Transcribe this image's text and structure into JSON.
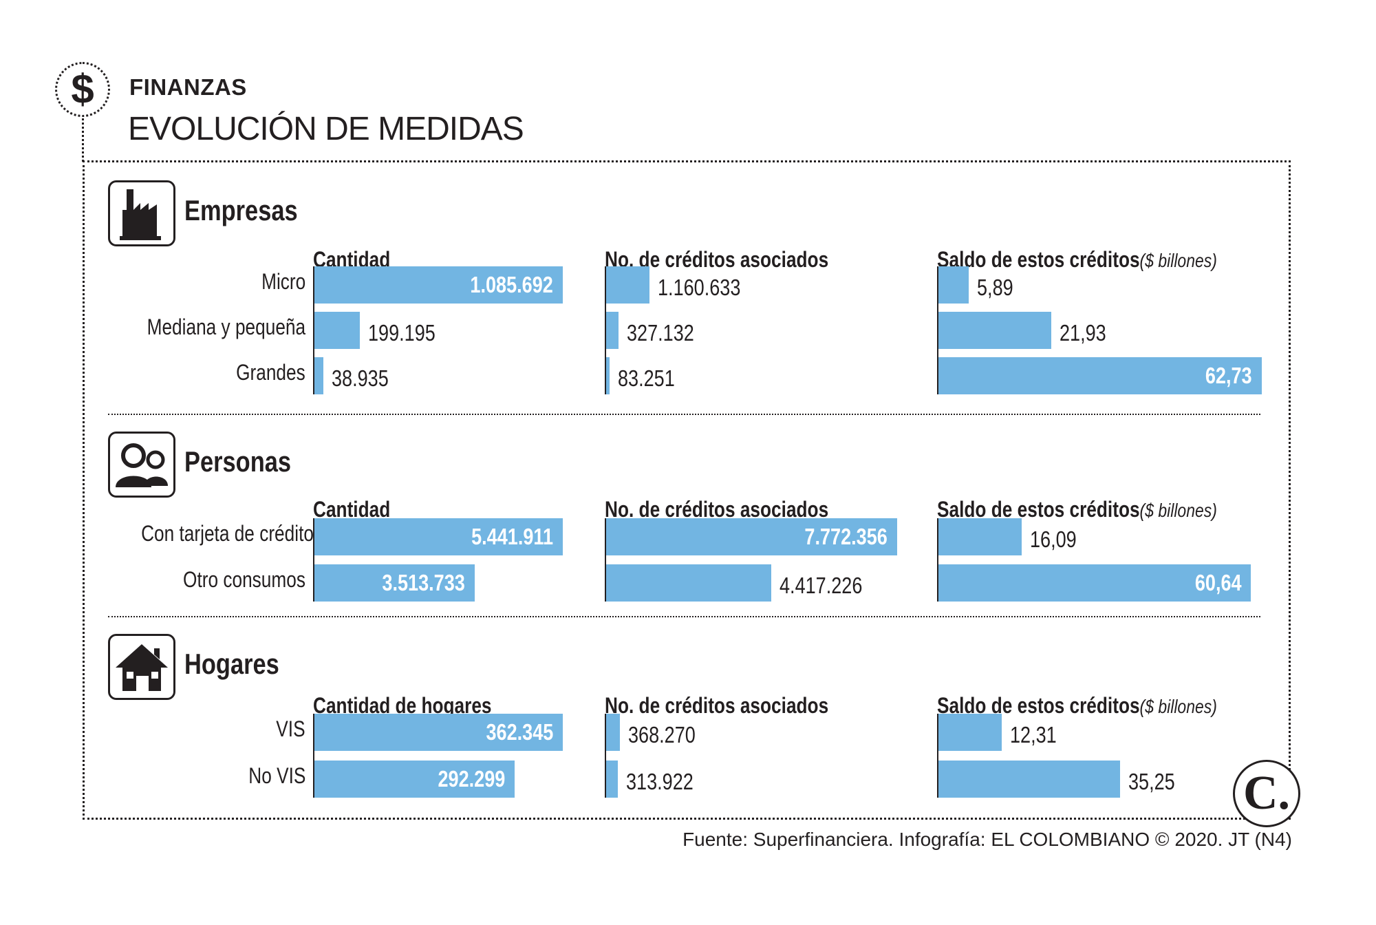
{
  "header": {
    "kicker": "FINANZAS",
    "title": "EVOLUCIÓN DE MEDIDAS",
    "dollar_icon": "$"
  },
  "source": "Fuente: Superfinanciera. Infografía: EL COLOMBIANO © 2020. JT (N4)",
  "logo": "C.",
  "colors": {
    "bar": "#72b5e2",
    "text": "#231f20"
  },
  "chart_data": [
    {
      "type": "bar",
      "title": "Empresas",
      "icon": "factory-icon",
      "columns": [
        {
          "header": "Cantidad",
          "unit": "",
          "rows": [
            {
              "label": "Micro",
              "value": 1085692,
              "text": "1.085.692",
              "inside": true
            },
            {
              "label": "Mediana y pequeña",
              "value": 199195,
              "text": "199.195",
              "inside": false
            },
            {
              "label": "Grandes",
              "value": 38935,
              "text": "38.935",
              "inside": false
            }
          ]
        },
        {
          "header": "No. de créditos asociados",
          "unit": "",
          "rows": [
            {
              "value": 1160633,
              "text": "1.160.633",
              "inside": false
            },
            {
              "value": 327132,
              "text": "327.132",
              "inside": false
            },
            {
              "value": 83251,
              "text": "83.251",
              "inside": false
            }
          ]
        },
        {
          "header": "Saldo de estos créditos",
          "unit": "($ billones)",
          "rows": [
            {
              "value": 5.89,
              "text": "5,89",
              "inside": false
            },
            {
              "value": 21.93,
              "text": "21,93",
              "inside": false
            },
            {
              "value": 62.73,
              "text": "62,73",
              "inside": true
            }
          ]
        }
      ]
    },
    {
      "type": "bar",
      "title": "Personas",
      "icon": "people-icon",
      "columns": [
        {
          "header": "Cantidad",
          "unit": "",
          "rows": [
            {
              "label": "Con tarjeta de crédito",
              "value": 5441911,
              "text": "5.441.911",
              "inside": true
            },
            {
              "label": "Otro consumos",
              "value": 3513733,
              "text": "3.513.733",
              "inside": true
            }
          ]
        },
        {
          "header": "No. de créditos asociados",
          "unit": "",
          "rows": [
            {
              "value": 7772356,
              "text": "7.772.356",
              "inside": true
            },
            {
              "value": 4417226,
              "text": "4.417.226",
              "inside": false
            }
          ]
        },
        {
          "header": "Saldo de estos créditos",
          "unit": "($ billones)",
          "rows": [
            {
              "value": 16.09,
              "text": "16,09",
              "inside": false
            },
            {
              "value": 60.64,
              "text": "60,64",
              "inside": true
            }
          ]
        }
      ]
    },
    {
      "type": "bar",
      "title": "Hogares",
      "icon": "house-icon",
      "columns": [
        {
          "header": "Cantidad de hogares",
          "unit": "",
          "rows": [
            {
              "label": "VIS",
              "value": 362345,
              "text": "362.345",
              "inside": true
            },
            {
              "label": "No VIS",
              "value": 292299,
              "text": "292.299",
              "inside": true
            }
          ]
        },
        {
          "header": "No. de créditos asociados",
          "unit": "",
          "rows": [
            {
              "value": 368270,
              "text": "368.270",
              "inside": false
            },
            {
              "value": 313922,
              "text": "313.922",
              "inside": false
            }
          ]
        },
        {
          "header": "Saldo de estos créditos",
          "unit": "($ billones)",
          "rows": [
            {
              "value": 12.31,
              "text": "12,31",
              "inside": false
            },
            {
              "value": 35.25,
              "text": "35,25",
              "inside": false
            }
          ]
        }
      ]
    }
  ]
}
